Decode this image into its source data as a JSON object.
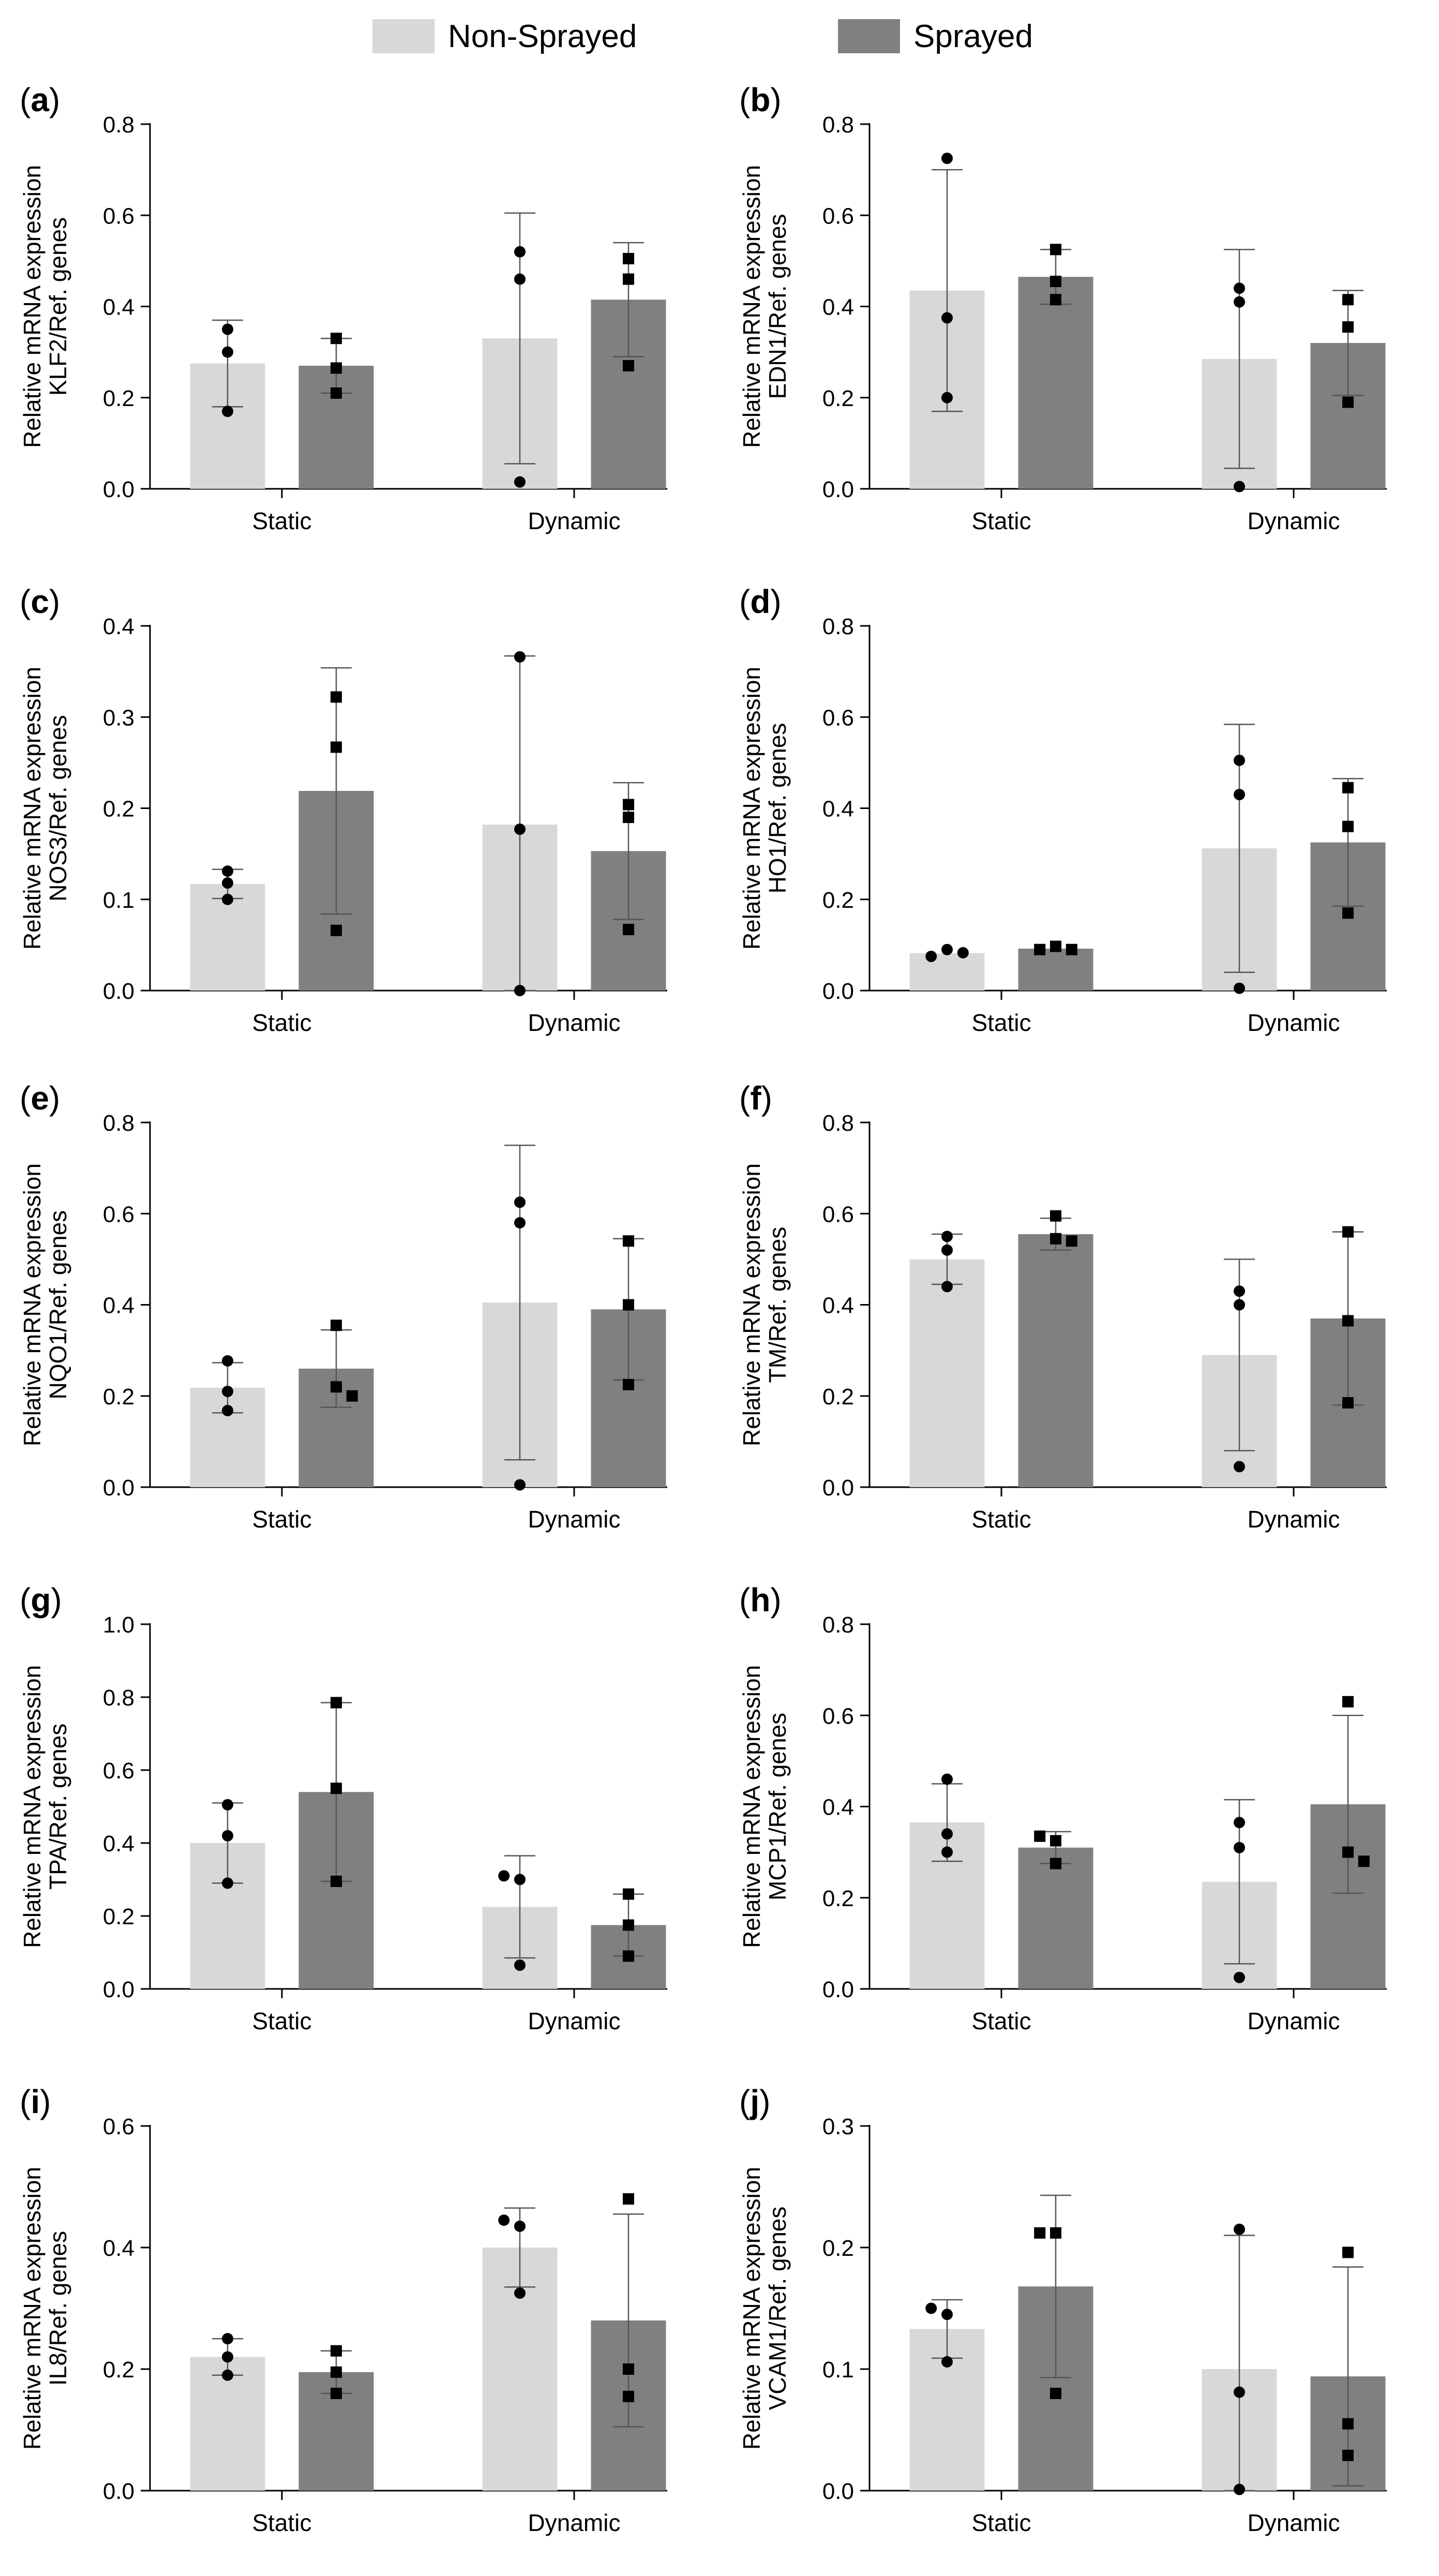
{
  "legend": {
    "non_sprayed_label": "Non-Sprayed",
    "sprayed_label": "Sprayed",
    "non_sprayed_color": "#d8d8d8",
    "sprayed_color": "#808080"
  },
  "chart_data": [
    {
      "panel_label": "(a)",
      "type": "bar",
      "ylabel_line1": "Relative mRNA expression",
      "ylabel_line2": "KLF2/Ref. genes",
      "categories": [
        "Static",
        "Dynamic"
      ],
      "ylim": [
        0,
        0.8
      ],
      "yticks": [
        "0.0",
        "0.2",
        "0.4",
        "0.6",
        "0.8"
      ],
      "series": [
        {
          "name": "Non-Sprayed",
          "values": [
            0.275,
            0.33
          ],
          "errors": [
            0.095,
            0.275
          ],
          "points": [
            [
              0.35,
              0.3,
              0.17
            ],
            [
              0.52,
              0.46,
              0.015
            ]
          ],
          "marker": "circle"
        },
        {
          "name": "Sprayed",
          "values": [
            0.27,
            0.415
          ],
          "errors": [
            0.06,
            0.125
          ],
          "points": [
            [
              0.33,
              0.265,
              0.21
            ],
            [
              0.505,
              0.46,
              0.27
            ]
          ],
          "marker": "square"
        }
      ]
    },
    {
      "panel_label": "(b)",
      "type": "bar",
      "ylabel_line1": "Relative mRNA expression",
      "ylabel_line2": "EDN1/Ref. genes",
      "categories": [
        "Static",
        "Dynamic"
      ],
      "ylim": [
        0,
        0.8
      ],
      "yticks": [
        "0.0",
        "0.2",
        "0.4",
        "0.6",
        "0.8"
      ],
      "series": [
        {
          "name": "Non-Sprayed",
          "values": [
            0.435,
            0.285
          ],
          "errors": [
            0.265,
            0.24
          ],
          "points": [
            [
              0.725,
              0.375,
              0.2
            ],
            [
              0.44,
              0.41,
              0.005
            ]
          ],
          "marker": "circle"
        },
        {
          "name": "Sprayed",
          "values": [
            0.465,
            0.32
          ],
          "errors": [
            0.06,
            0.115
          ],
          "points": [
            [
              0.525,
              0.455,
              0.415
            ],
            [
              0.415,
              0.355,
              0.19
            ]
          ],
          "marker": "square"
        }
      ]
    },
    {
      "panel_label": "(c)",
      "type": "bar",
      "ylabel_line1": "Relative mRNA expression",
      "ylabel_line2": "NOS3/Ref. genes",
      "categories": [
        "Static",
        "Dynamic"
      ],
      "ylim": [
        0,
        0.4
      ],
      "yticks": [
        "0.0",
        "0.1",
        "0.2",
        "0.3",
        "0.4"
      ],
      "series": [
        {
          "name": "Non-Sprayed",
          "values": [
            0.117,
            0.182
          ],
          "errors": [
            0.016,
            0.185
          ],
          "points": [
            [
              0.131,
              0.118,
              0.1
            ],
            [
              0.366,
              0.177,
              0.0
            ]
          ],
          "marker": "circle"
        },
        {
          "name": "Sprayed",
          "values": [
            0.219,
            0.153
          ],
          "errors": [
            0.135,
            0.075
          ],
          "points": [
            [
              0.322,
              0.267,
              0.066
            ],
            [
              0.204,
              0.19,
              0.067
            ]
          ],
          "marker": "square"
        }
      ]
    },
    {
      "panel_label": "(d)",
      "type": "bar",
      "ylabel_line1": "Relative mRNA expression",
      "ylabel_line2": "HO1/Ref. genes",
      "categories": [
        "Static",
        "Dynamic"
      ],
      "ylim": [
        0,
        0.8
      ],
      "yticks": [
        "0.0",
        "0.2",
        "0.4",
        "0.6",
        "0.8"
      ],
      "series": [
        {
          "name": "Non-Sprayed",
          "values": [
            0.082,
            0.312
          ],
          "errors": [
            0.0,
            0.272
          ],
          "points": [
            [
              0.075,
              0.09,
              0.083
            ],
            [
              0.505,
              0.43,
              0.005
            ]
          ],
          "marker": "circle"
        },
        {
          "name": "Sprayed",
          "values": [
            0.092,
            0.325
          ],
          "errors": [
            0.0,
            0.14
          ],
          "points": [
            [
              0.09,
              0.097,
              0.09
            ],
            [
              0.445,
              0.36,
              0.17
            ]
          ],
          "marker": "square"
        }
      ]
    },
    {
      "panel_label": "(e)",
      "type": "bar",
      "ylabel_line1": "Relative mRNA expression",
      "ylabel_line2": "NQO1/Ref. genes",
      "categories": [
        "Static",
        "Dynamic"
      ],
      "ylim": [
        0,
        0.8
      ],
      "yticks": [
        "0.0",
        "0.2",
        "0.4",
        "0.6",
        "0.8"
      ],
      "series": [
        {
          "name": "Non-Sprayed",
          "values": [
            0.218,
            0.405
          ],
          "errors": [
            0.055,
            0.345
          ],
          "points": [
            [
              0.277,
              0.21,
              0.168
            ],
            [
              0.625,
              0.58,
              0.005
            ]
          ],
          "marker": "circle"
        },
        {
          "name": "Sprayed",
          "values": [
            0.26,
            0.39
          ],
          "errors": [
            0.085,
            0.155
          ],
          "points": [
            [
              0.355,
              0.22,
              0.2
            ],
            [
              0.54,
              0.4,
              0.225
            ]
          ],
          "marker": "square"
        }
      ]
    },
    {
      "panel_label": "(f)",
      "type": "bar",
      "ylabel_line1": "Relative mRNA expression",
      "ylabel_line2": "TM/Ref. genes",
      "categories": [
        "Static",
        "Dynamic"
      ],
      "ylim": [
        0,
        0.8
      ],
      "yticks": [
        "0.0",
        "0.2",
        "0.4",
        "0.6",
        "0.8"
      ],
      "series": [
        {
          "name": "Non-Sprayed",
          "values": [
            0.5,
            0.29
          ],
          "errors": [
            0.055,
            0.21
          ],
          "points": [
            [
              0.55,
              0.52,
              0.44
            ],
            [
              0.43,
              0.4,
              0.045
            ]
          ],
          "marker": "circle"
        },
        {
          "name": "Sprayed",
          "values": [
            0.555,
            0.37
          ],
          "errors": [
            0.035,
            0.19
          ],
          "points": [
            [
              0.595,
              0.545,
              0.54
            ],
            [
              0.56,
              0.365,
              0.185
            ]
          ],
          "marker": "square"
        }
      ]
    },
    {
      "panel_label": "(g)",
      "type": "bar",
      "ylabel_line1": "Relative mRNA expression",
      "ylabel_line2": "TPA/Ref. genes",
      "categories": [
        "Static",
        "Dynamic"
      ],
      "ylim": [
        0,
        1.0
      ],
      "yticks": [
        "0.0",
        "0.2",
        "0.4",
        "0.6",
        "0.8",
        "1.0"
      ],
      "series": [
        {
          "name": "Non-Sprayed",
          "values": [
            0.4,
            0.225
          ],
          "errors": [
            0.11,
            0.14
          ],
          "points": [
            [
              0.505,
              0.42,
              0.29
            ],
            [
              0.31,
              0.3,
              0.065
            ]
          ],
          "marker": "circle"
        },
        {
          "name": "Sprayed",
          "values": [
            0.54,
            0.175
          ],
          "errors": [
            0.245,
            0.085
          ],
          "points": [
            [
              0.785,
              0.55,
              0.295
            ],
            [
              0.26,
              0.175,
              0.09
            ]
          ],
          "marker": "square"
        }
      ]
    },
    {
      "panel_label": "(h)",
      "type": "bar",
      "ylabel_line1": "Relative mRNA expression",
      "ylabel_line2": "MCP1/Ref. genes",
      "categories": [
        "Static",
        "Dynamic"
      ],
      "ylim": [
        0,
        0.8
      ],
      "yticks": [
        "0.0",
        "0.2",
        "0.4",
        "0.6",
        "0.8"
      ],
      "series": [
        {
          "name": "Non-Sprayed",
          "values": [
            0.365,
            0.235
          ],
          "errors": [
            0.085,
            0.18
          ],
          "points": [
            [
              0.46,
              0.34,
              0.3
            ],
            [
              0.365,
              0.31,
              0.025
            ]
          ],
          "marker": "circle"
        },
        {
          "name": "Sprayed",
          "values": [
            0.31,
            0.405
          ],
          "errors": [
            0.035,
            0.195
          ],
          "points": [
            [
              0.335,
              0.325,
              0.275
            ],
            [
              0.63,
              0.3,
              0.28
            ]
          ],
          "marker": "square"
        }
      ]
    },
    {
      "panel_label": "(i)",
      "type": "bar",
      "ylabel_line1": "Relative mRNA expression",
      "ylabel_line2": "IL8/Ref. genes",
      "categories": [
        "Static",
        "Dynamic"
      ],
      "ylim": [
        0,
        0.6
      ],
      "yticks": [
        "0.0",
        "0.2",
        "0.4",
        "0.6"
      ],
      "series": [
        {
          "name": "Non-Sprayed",
          "values": [
            0.22,
            0.4
          ],
          "errors": [
            0.03,
            0.065
          ],
          "points": [
            [
              0.25,
              0.22,
              0.19
            ],
            [
              0.445,
              0.435,
              0.325
            ]
          ],
          "marker": "circle"
        },
        {
          "name": "Sprayed",
          "values": [
            0.195,
            0.28
          ],
          "errors": [
            0.035,
            0.175
          ],
          "points": [
            [
              0.23,
              0.195,
              0.16
            ],
            [
              0.48,
              0.2,
              0.155
            ]
          ],
          "marker": "square"
        }
      ]
    },
    {
      "panel_label": "(j)",
      "type": "bar",
      "ylabel_line1": "Relative mRNA expression",
      "ylabel_line2": "VCAM1/Ref. genes",
      "categories": [
        "Static",
        "Dynamic"
      ],
      "ylim": [
        0,
        0.3
      ],
      "yticks": [
        "0.0",
        "0.1",
        "0.2",
        "0.3"
      ],
      "series": [
        {
          "name": "Non-Sprayed",
          "values": [
            0.133,
            0.1
          ],
          "errors": [
            0.024,
            0.11
          ],
          "points": [
            [
              0.15,
              0.145,
              0.106
            ],
            [
              0.215,
              0.081,
              0.001
            ]
          ],
          "marker": "circle"
        },
        {
          "name": "Sprayed",
          "values": [
            0.168,
            0.094
          ],
          "errors": [
            0.075,
            0.09
          ],
          "points": [
            [
              0.212,
              0.212,
              0.08
            ],
            [
              0.196,
              0.055,
              0.029
            ]
          ],
          "marker": "square"
        }
      ]
    }
  ]
}
